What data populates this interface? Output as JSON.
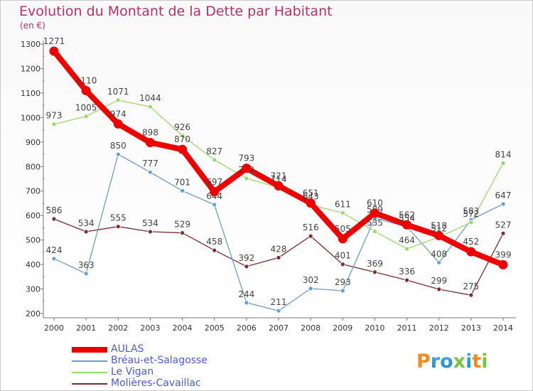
{
  "title": "Evolution du Montant de la Dette par Habitant",
  "unit_label": "(en €)",
  "logo_text": "Proxiti",
  "colors": {
    "title": "#b5306a",
    "axis": "#777777",
    "legend_text": "#4a5bd6"
  },
  "chart_data": {
    "type": "line",
    "title": "Evolution du Montant de la Dette par Habitant",
    "ylabel": "(en €)",
    "xlabel": "",
    "ylim": [
      200,
      1300
    ],
    "y_ticks": [
      200,
      300,
      400,
      500,
      600,
      700,
      800,
      900,
      1000,
      1100,
      1200,
      1300
    ],
    "x": [
      "2000",
      "2001",
      "2002",
      "2003",
      "2004",
      "2005",
      "2006",
      "2007",
      "2008",
      "2009",
      "2010",
      "2011",
      "2012",
      "2013",
      "2014"
    ],
    "grid": false,
    "legend_position": "bottom-left",
    "series": [
      {
        "name": "Molières-Cavaillac",
        "color": "#7a2e2e",
        "width": 1.3,
        "values": [
          586,
          534,
          555,
          534,
          529,
          458,
          392,
          428,
          516,
          401,
          369,
          336,
          299,
          275,
          527
        ]
      },
      {
        "name": "Bréau-et-Salagosse",
        "color": "#6a9ecf",
        "width": 1.3,
        "values": [
          424,
          363,
          850,
          777,
          701,
          644,
          244,
          211,
          302,
          293,
          589,
          554,
          408,
          583,
          647
        ]
      },
      {
        "name": "Le Vigan",
        "color": "#9ad86c",
        "width": 1.3,
        "values": [
          973,
          1005,
          1071,
          1044,
          926,
          827,
          752,
          714,
          643,
          611,
          535,
          464,
          512,
          572,
          814
        ]
      },
      {
        "name": "AULAS",
        "color": "#ee0000",
        "width": 8,
        "values": [
          1271,
          1110,
          974,
          898,
          870,
          697,
          793,
          721,
          651,
          505,
          610,
          562,
          518,
          452,
          399
        ]
      }
    ],
    "legend_order": [
      "AULAS",
      "Bréau-et-Salagosse",
      "Le Vigan",
      "Molières-Cavaillac"
    ]
  }
}
